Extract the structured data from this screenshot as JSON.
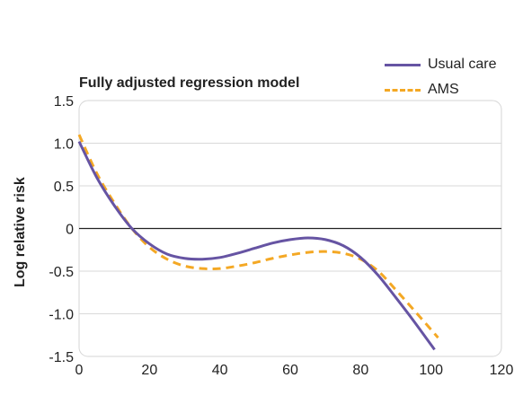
{
  "chart_data": {
    "type": "line",
    "title": "Fully adjusted regression model",
    "xlabel": "",
    "ylabel": "Log relative risk",
    "xlim": [
      0,
      120
    ],
    "ylim": [
      -1.5,
      1.5
    ],
    "x_ticks": [
      "0",
      "20",
      "40",
      "60",
      "80",
      "100",
      "120"
    ],
    "y_ticks": [
      "1.5",
      "1.0",
      "0.5",
      "0",
      "-0.5",
      "-1.0",
      "-1.5"
    ],
    "grid": "horizontal",
    "reference_line": 0,
    "legend_position": "top-right",
    "series": [
      {
        "name": "Usual care",
        "style": "solid",
        "color": "#6654a3",
        "x": [
          0,
          5,
          10,
          15,
          20,
          25,
          30,
          35,
          40,
          45,
          50,
          55,
          60,
          65,
          70,
          75,
          80,
          85,
          90,
          95,
          101
        ],
        "y": [
          1.02,
          0.6,
          0.27,
          0.0,
          -0.18,
          -0.3,
          -0.35,
          -0.36,
          -0.34,
          -0.29,
          -0.23,
          -0.17,
          -0.13,
          -0.11,
          -0.13,
          -0.2,
          -0.34,
          -0.55,
          -0.81,
          -1.08,
          -1.42
        ]
      },
      {
        "name": "AMS",
        "style": "dashed",
        "color": "#f4a824",
        "x": [
          0,
          5,
          10,
          15,
          20,
          25,
          30,
          35,
          40,
          45,
          50,
          55,
          60,
          65,
          70,
          75,
          80,
          85,
          90,
          95,
          102
        ],
        "y": [
          1.1,
          0.65,
          0.3,
          0.0,
          -0.22,
          -0.36,
          -0.44,
          -0.47,
          -0.47,
          -0.44,
          -0.4,
          -0.35,
          -0.31,
          -0.28,
          -0.27,
          -0.29,
          -0.36,
          -0.5,
          -0.72,
          -0.95,
          -1.28
        ]
      }
    ]
  }
}
